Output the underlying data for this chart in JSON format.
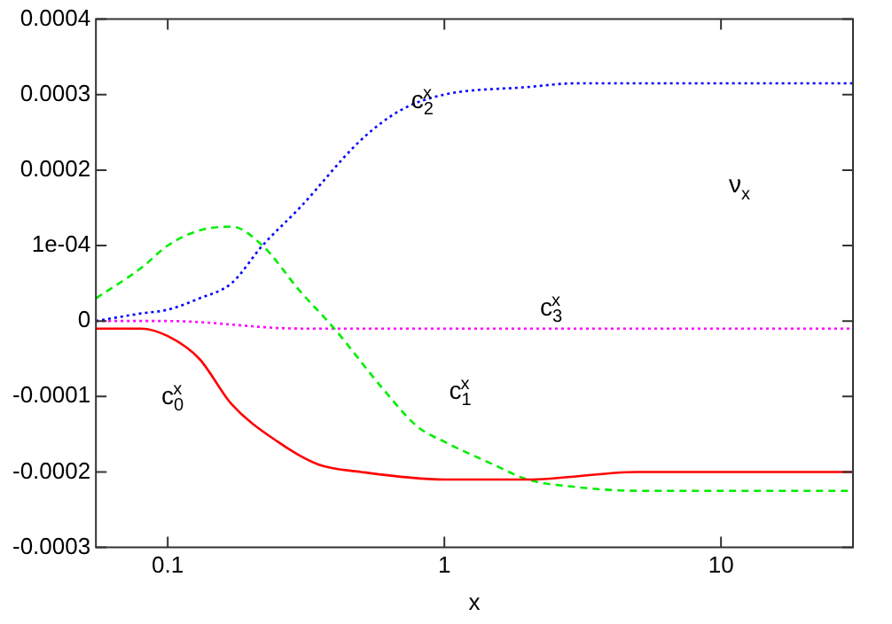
{
  "chart_data": {
    "type": "line",
    "xlabel": "x",
    "log": "x",
    "legend": false,
    "grid": false,
    "marker": "none",
    "xlim": [
      0.055,
      30
    ],
    "xticks": [
      0.1,
      1,
      10
    ],
    "ylim": [
      -0.0003,
      0.0004
    ],
    "yticks": [
      -0.0003,
      -0.0002,
      -0.0001,
      0,
      {
        "value": 0.0001,
        "label": "1e-04"
      },
      0.0002,
      0.0003,
      0.0004
    ],
    "series": [
      {
        "name": "c$_{0}$$^{x}$",
        "color": "#ff0000",
        "line_style": "solid",
        "x": [
          0.055,
          0.08,
          0.1,
          0.13,
          0.17,
          0.25,
          0.35,
          0.5,
          1,
          2,
          5,
          30
        ],
        "values": [
          -1e-05,
          -1e-05,
          -2e-05,
          -5e-05,
          -0.00011,
          -0.00016,
          -0.00019,
          -0.0002,
          -0.00021,
          -0.00021,
          -0.0002,
          -0.0002
        ]
      },
      {
        "name": "c$_{1}$$^{x}$",
        "color": "#00ee00",
        "line_style": "dashed",
        "x": [
          0.055,
          0.08,
          0.1,
          0.13,
          0.17,
          0.22,
          0.3,
          0.4,
          0.6,
          0.8,
          1,
          1.5,
          2,
          3,
          5,
          30
        ],
        "values": [
          3e-05,
          7e-05,
          0.0001,
          0.00012,
          0.000125,
          0.0001,
          4e-05,
          -1e-05,
          -9e-05,
          -0.00014,
          -0.00016,
          -0.00019,
          -0.00021,
          -0.00022,
          -0.000225,
          -0.000225
        ]
      },
      {
        "name": "c$_{2}$$^{x}$",
        "color": "#0000ff",
        "line_style": "dotted",
        "x": [
          0.055,
          0.08,
          0.1,
          0.13,
          0.17,
          0.22,
          0.3,
          0.5,
          0.7,
          1,
          2,
          3,
          5,
          30
        ],
        "values": [
          0,
          1e-05,
          1.5e-05,
          3e-05,
          5e-05,
          0.0001,
          0.00015,
          0.00024,
          0.00028,
          0.0003,
          0.00031,
          0.000315,
          0.000315,
          0.000315
        ]
      },
      {
        "name": "c$_{3}$$^{x}$",
        "color": "#ff00ff",
        "line_style": "dotted",
        "x": [
          0.055,
          0.1,
          0.3,
          1,
          30
        ],
        "values": [
          0,
          0,
          -1e-05,
          -1e-05,
          -1e-05
        ]
      }
    ],
    "annotations": [
      "ν$_{x}$"
    ]
  }
}
